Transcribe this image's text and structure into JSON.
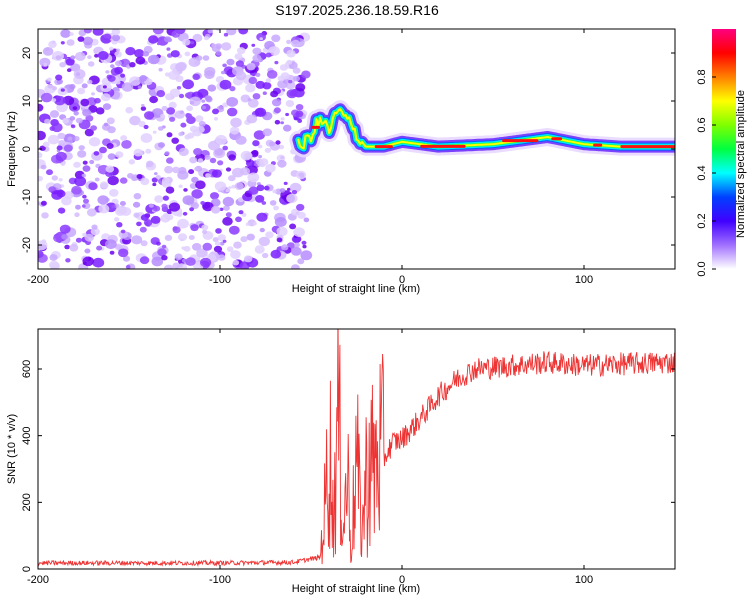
{
  "title": "S197.2025.236.18.59.R16",
  "chart_data": [
    {
      "type": "heatmap",
      "title": "S197.2025.236.18.59.R16",
      "xlabel": "Height of straight line (km)",
      "ylabel": "Frequency (Hz)",
      "xlim": [
        -200,
        150
      ],
      "ylim": [
        -25,
        25
      ],
      "xticks": [
        "-200",
        "-100",
        "0",
        "100"
      ],
      "yticks": [
        "-20",
        "-10",
        "0",
        "10",
        "20"
      ],
      "colorbar": {
        "label": "Normalized spectral amplitude",
        "range": [
          0,
          1
        ],
        "ticks": [
          "0.0",
          "0.2",
          "0.4",
          "0.6",
          "0.8"
        ],
        "colors": [
          "#ffffff",
          "#8000ff",
          "#0000ff",
          "#00ffff",
          "#00ff00",
          "#ffff00",
          "#ff8000",
          "#ff0000",
          "#ff0080"
        ]
      },
      "noise_region_x": [
        -200,
        -55
      ],
      "carrier_track": [
        {
          "x": -55,
          "f": 0.5
        },
        {
          "x": -50,
          "f": 3.0
        },
        {
          "x": -45,
          "f": 6.0
        },
        {
          "x": -40,
          "f": 4.0
        },
        {
          "x": -35,
          "f": 8.0
        },
        {
          "x": -30,
          "f": 6.0
        },
        {
          "x": -25,
          "f": 3.0
        },
        {
          "x": -20,
          "f": 0.5
        },
        {
          "x": -10,
          "f": 0.5
        },
        {
          "x": 0,
          "f": 1.5
        },
        {
          "x": 20,
          "f": 0.5
        },
        {
          "x": 50,
          "f": 1.0
        },
        {
          "x": 80,
          "f": 2.5
        },
        {
          "x": 100,
          "f": 1.0
        },
        {
          "x": 120,
          "f": 0.5
        },
        {
          "x": 150,
          "f": 0.5
        }
      ]
    },
    {
      "type": "line",
      "xlabel": "Height of straight line (km)",
      "ylabel": "SNR (10 * v/v)",
      "xlim": [
        -200,
        150
      ],
      "ylim": [
        0,
        720
      ],
      "xticks": [
        "-200",
        "-100",
        "0",
        "100"
      ],
      "yticks": [
        "0",
        "200",
        "400",
        "600"
      ],
      "color": "#ee3333",
      "series": [
        {
          "name": "SNR",
          "x": [
            -200,
            -150,
            -100,
            -60,
            -45,
            -42,
            -40,
            -38,
            -35,
            -32,
            -30,
            -28,
            -25,
            -22,
            -20,
            -18,
            -15,
            -12,
            -10,
            -5,
            0,
            10,
            20,
            30,
            40,
            60,
            80,
            100,
            120,
            150
          ],
          "y": [
            18,
            18,
            18,
            20,
            35,
            200,
            420,
            150,
            450,
            130,
            300,
            60,
            330,
            100,
            260,
            320,
            300,
            360,
            330,
            380,
            390,
            450,
            520,
            570,
            600,
            610,
            620,
            610,
            615,
            620
          ]
        }
      ]
    }
  ]
}
